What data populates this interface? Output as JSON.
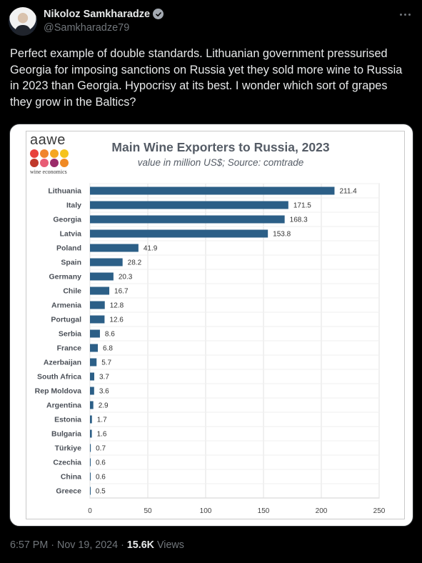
{
  "author": {
    "display_name": "Nikoloz Samkharadze",
    "handle": "@Samkharadze79"
  },
  "tweet": {
    "text": "Perfect example of double standards. Lithuanian government pressurised Georgia for imposing sanctions on Russia yet they sold more wine to Russia in 2023 than Georgia. Hypocrisy at its best. I wonder which sort of grapes they grow in the Baltics?"
  },
  "media": {
    "logo": {
      "word": "aawe",
      "tagline": "wine economics",
      "dot_colors": [
        "#e8413b",
        "#f0852d",
        "#f5a623",
        "#f6c31c",
        "#c0392b",
        "#e85d75",
        "#9b2c6a",
        "#f08a24"
      ]
    },
    "chart_data": {
      "type": "bar",
      "orientation": "horizontal",
      "title": "Main Wine Exporters to Russia, 2023",
      "subtitle": "value in million US$; Source: comtrade",
      "categories": [
        "Lithuania",
        "Italy",
        "Georgia",
        "Latvia",
        "Poland",
        "Spain",
        "Germany",
        "Chile",
        "Armenia",
        "Portugal",
        "Serbia",
        "France",
        "Azerbaijan",
        "South Africa",
        "Rep Moldova",
        "Argentina",
        "Estonia",
        "Bulgaria",
        "Türkiye",
        "Czechia",
        "China",
        "Greece"
      ],
      "values": [
        211.4,
        171.5,
        168.3,
        153.8,
        41.9,
        28.2,
        20.3,
        16.7,
        12.8,
        12.6,
        8.6,
        6.8,
        5.7,
        3.7,
        3.6,
        2.9,
        1.7,
        1.6,
        0.7,
        0.6,
        0.6,
        0.5
      ],
      "data_labels": [
        "211.4",
        "171.5",
        "168.3",
        "153.8",
        "41.9",
        "28.2",
        "20.3",
        "16.7",
        "12.8",
        "12.6",
        "8.6",
        "6.8",
        "5.7",
        "3.7",
        "3.6",
        "2.9",
        "1.7",
        "1.6",
        "0.7",
        "0.6",
        "0.6",
        "0.5"
      ],
      "xlim": [
        0,
        250
      ],
      "xticks": [
        "0",
        "50",
        "100",
        "150",
        "200",
        "250"
      ],
      "grid": true,
      "bar_color": "#2c5f87"
    }
  },
  "footer": {
    "time": "6:57 PM",
    "separator": "·",
    "date": "Nov 19, 2024",
    "views_count": "15.6K",
    "views_label": "Views"
  }
}
